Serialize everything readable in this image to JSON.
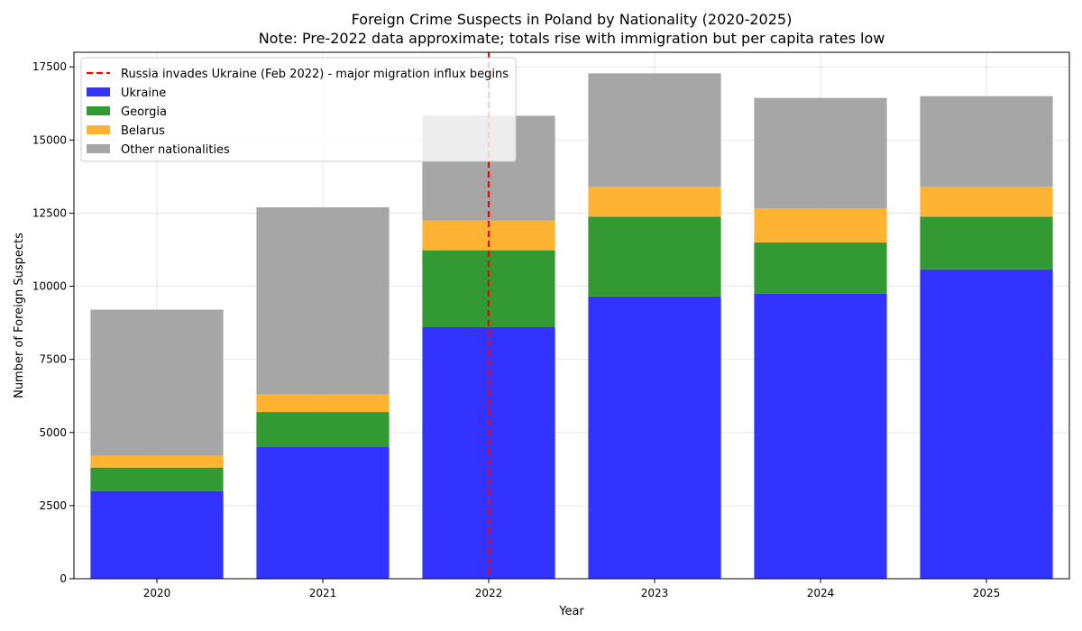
{
  "chart_data": {
    "type": "bar",
    "stacked": true,
    "title": "Foreign Crime Suspects in Poland by Nationality (2020-2025)",
    "subtitle": "Note: Pre-2022 data approximate; totals rise with immigration but per capita rates low",
    "xlabel": "Year",
    "ylabel": "Number of Foreign Suspects",
    "categories": [
      "2020",
      "2021",
      "2022",
      "2023",
      "2024",
      "2025"
    ],
    "ylim": [
      0,
      18000
    ],
    "yticks": [
      0,
      2500,
      5000,
      7500,
      10000,
      12500,
      15000,
      17500
    ],
    "grid": true,
    "legend_position": "top-left",
    "series": [
      {
        "name": "Ukraine",
        "color": "#3333ff",
        "values": [
          3000,
          4500,
          8600,
          9650,
          9750,
          10580
        ]
      },
      {
        "name": "Georgia",
        "color": "#339933",
        "values": [
          800,
          1200,
          2630,
          2730,
          1750,
          1800
        ]
      },
      {
        "name": "Belarus",
        "color": "#ffb333",
        "values": [
          400,
          600,
          1020,
          1020,
          1160,
          1030
        ]
      },
      {
        "name": "Other nationalities",
        "color": "#a6a6a6",
        "values": [
          5000,
          6400,
          3580,
          3880,
          3780,
          3090
        ]
      }
    ],
    "annotation": {
      "type": "vline",
      "x": "2022",
      "label": "Russia invades Ukraine (Feb 2022) - major migration influx begins",
      "color": "#ff0000"
    }
  }
}
